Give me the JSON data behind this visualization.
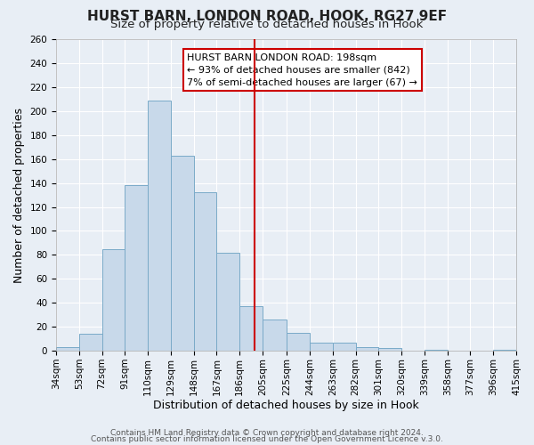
{
  "title": "HURST BARN, LONDON ROAD, HOOK, RG27 9EF",
  "subtitle": "Size of property relative to detached houses in Hook",
  "xlabel": "Distribution of detached houses by size in Hook",
  "ylabel": "Number of detached properties",
  "bar_edges": [
    34,
    53,
    72,
    91,
    110,
    129,
    148,
    167,
    186,
    205,
    225,
    244,
    263,
    282,
    301,
    320,
    339,
    358,
    377,
    396,
    415
  ],
  "bar_heights": [
    3,
    14,
    85,
    138,
    209,
    163,
    132,
    82,
    37,
    26,
    15,
    7,
    7,
    3,
    2,
    0,
    1,
    0,
    0,
    1
  ],
  "bar_color": "#c8d9ea",
  "bar_edge_color": "#7aaac8",
  "vline_x": 198,
  "vline_color": "#cc0000",
  "annotation_title": "HURST BARN LONDON ROAD: 198sqm",
  "annotation_line1": "← 93% of detached houses are smaller (842)",
  "annotation_line2": "7% of semi-detached houses are larger (67) →",
  "annotation_box_color": "#cc0000",
  "annotation_bg": "#ffffff",
  "ylim": [
    0,
    260
  ],
  "yticks": [
    0,
    20,
    40,
    60,
    80,
    100,
    120,
    140,
    160,
    180,
    200,
    220,
    240,
    260
  ],
  "xtick_labels": [
    "34sqm",
    "53sqm",
    "72sqm",
    "91sqm",
    "110sqm",
    "129sqm",
    "148sqm",
    "167sqm",
    "186sqm",
    "205sqm",
    "225sqm",
    "244sqm",
    "263sqm",
    "282sqm",
    "301sqm",
    "320sqm",
    "339sqm",
    "358sqm",
    "377sqm",
    "396sqm",
    "415sqm"
  ],
  "footer1": "Contains HM Land Registry data © Crown copyright and database right 2024.",
  "footer2": "Contains public sector information licensed under the Open Government Licence v.3.0.",
  "bg_color": "#e8eef5",
  "plot_bg_color": "#e8eef5",
  "grid_color": "#ffffff",
  "title_fontsize": 11,
  "subtitle_fontsize": 9.5,
  "axis_label_fontsize": 9,
  "tick_fontsize": 7.5,
  "annotation_fontsize": 8,
  "footer_fontsize": 6.5
}
